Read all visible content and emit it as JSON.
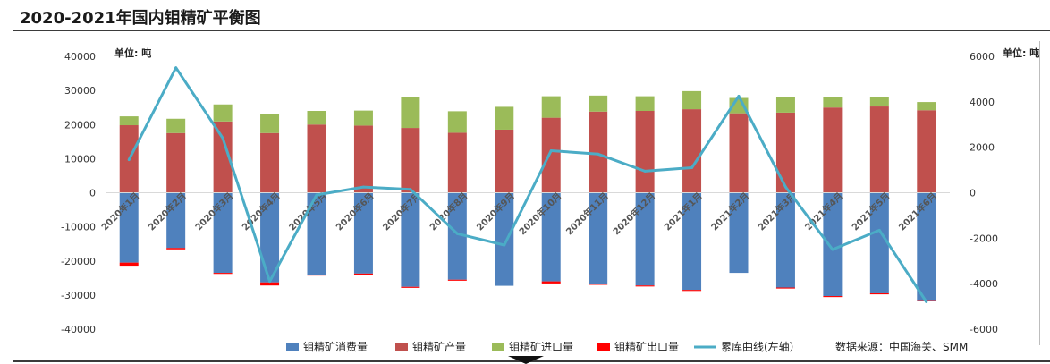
{
  "title": "2020-2021年国内钼精矿平衡图",
  "unit_left": "单位: 吨",
  "unit_right": "单位: 吨",
  "source": "数据来源：中国海关、SMM",
  "colors": {
    "consumption": "#4f81bd",
    "production": "#c0504d",
    "import": "#9bbb59",
    "export": "#ff0000",
    "inventory": "#4bacc6"
  },
  "chart_data": {
    "type": "bar",
    "categories": [
      "2020年1月",
      "2020年2月",
      "2020年3月",
      "2020年4月",
      "2020年5月",
      "2020年6月",
      "2020年7月",
      "2020年8月",
      "2020年9月",
      "2020年10月",
      "2020年11月",
      "2020年12月",
      "2021年1月",
      "2021年2月",
      "2021年3月",
      "2021年4月",
      "2021年5月",
      "2021年6月"
    ],
    "series": [
      {
        "name": "钼精矿消费量",
        "type": "bar",
        "axis": "left",
        "stack": "neg",
        "values": [
          -20500,
          -16200,
          -23500,
          -26300,
          -24000,
          -23700,
          -27600,
          -25500,
          -27300,
          -26000,
          -26700,
          -27200,
          -28500,
          -23500,
          -27800,
          -30300,
          -29500,
          -31500
        ]
      },
      {
        "name": "钼精矿产量",
        "type": "bar",
        "axis": "left",
        "stack": "pos",
        "values": [
          19800,
          17500,
          20900,
          17500,
          20000,
          19700,
          19000,
          17600,
          18500,
          22000,
          23800,
          24000,
          24500,
          23300,
          23500,
          25000,
          25300,
          24200
        ]
      },
      {
        "name": "钼精矿进口量",
        "type": "bar",
        "axis": "left",
        "stack": "pos",
        "values": [
          2600,
          4200,
          5000,
          5500,
          4000,
          4400,
          9000,
          6300,
          6700,
          6300,
          4700,
          4300,
          5300,
          4500,
          4500,
          3000,
          2700,
          2400
        ]
      },
      {
        "name": "钼精矿出口量",
        "type": "bar",
        "axis": "left",
        "stack": "neg",
        "values": [
          -900,
          -400,
          -300,
          -900,
          -300,
          -300,
          -300,
          -300,
          0,
          -600,
          -300,
          -300,
          -300,
          0,
          -300,
          -300,
          -300,
          -300
        ]
      },
      {
        "name": "累库曲线(左轴）",
        "type": "line",
        "axis": "right",
        "values": [
          1450,
          5500,
          2400,
          -3900,
          -100,
          250,
          150,
          -1800,
          -2300,
          1850,
          1700,
          950,
          1100,
          4250,
          250,
          -2500,
          -1650,
          -4800
        ]
      }
    ],
    "y_left": {
      "min": -40000,
      "max": 40000,
      "step": 10000,
      "ticks": [
        "40000",
        "30000",
        "20000",
        "10000",
        "0",
        "-10000",
        "-20000",
        "-30000",
        "-40000"
      ]
    },
    "y_right": {
      "min": -6000,
      "max": 6000,
      "step": 2000,
      "ticks": [
        "6000",
        "4000",
        "2000",
        "0",
        "-2000",
        "-4000",
        "-6000"
      ]
    },
    "legend_position": "bottom",
    "grid": false
  }
}
